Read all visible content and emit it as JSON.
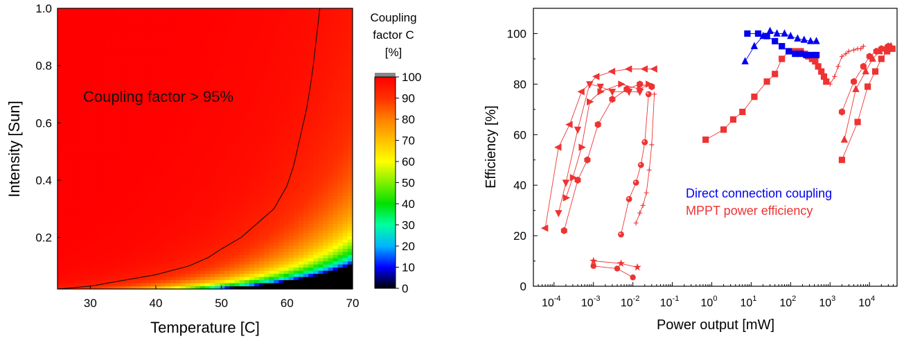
{
  "chart_data": [
    {
      "type": "heatmap",
      "xlabel": "Temperature [C]",
      "ylabel": "Intensity [Sun]",
      "xlim": [
        25,
        70
      ],
      "ylim": [
        0.02,
        1.0
      ],
      "xticks": [
        30,
        40,
        50,
        60,
        70
      ],
      "yticks": [
        0.2,
        0.4,
        0.6,
        0.8,
        1.0
      ],
      "annotation": "Coupling factor > 95%",
      "colorbar": {
        "title": [
          "Coupling",
          "factor C",
          "[%]"
        ],
        "ticks": [
          0,
          10,
          20,
          30,
          40,
          50,
          60,
          70,
          80,
          90,
          100
        ],
        "range": [
          0,
          100
        ],
        "colors": [
          "#000000",
          "#0000ff",
          "#00b4ff",
          "#00ffa0",
          "#00e000",
          "#80f000",
          "#ffff00",
          "#ffc000",
          "#ff8000",
          "#ff3000",
          "#ff0000"
        ]
      },
      "contour_95": {
        "temperature": [
          25,
          30,
          35,
          40,
          45,
          48,
          50,
          53,
          55,
          58,
          60,
          61,
          62,
          63,
          63.5,
          64,
          64.5,
          65
        ],
        "intensity": [
          0.02,
          0.03,
          0.05,
          0.07,
          0.1,
          0.13,
          0.16,
          0.2,
          0.24,
          0.3,
          0.38,
          0.45,
          0.55,
          0.65,
          0.72,
          0.8,
          0.9,
          1.0
        ]
      }
    },
    {
      "type": "scatter",
      "xlabel": "Power output [mW]",
      "ylabel": "Efficiency [%]",
      "xscale": "log",
      "xlim": [
        3e-05,
        50000
      ],
      "ylim": [
        0,
        110
      ],
      "xticks": [
        "10-4",
        "10-3",
        "10-2",
        "10-1",
        "100",
        "101",
        "102",
        "103",
        "104"
      ],
      "yticks": [
        0,
        20,
        40,
        60,
        80,
        100
      ],
      "legend": [
        {
          "label": "Direct connection coupling",
          "color": "#0000ee"
        },
        {
          "label": "MPPT power efficiency",
          "color": "#ee3333"
        }
      ],
      "series": [
        {
          "group": "MPPT power efficiency",
          "marker": "triangle-left",
          "color": "#ee3333",
          "x": [
            6e-05,
            0.00013,
            0.00025,
            0.0005,
            0.0012,
            0.003,
            0.008,
            0.02,
            0.035
          ],
          "y": [
            23,
            55,
            64,
            77,
            83,
            85,
            86,
            86,
            86
          ]
        },
        {
          "group": "MPPT power efficiency",
          "marker": "triangle-down",
          "color": "#ee3333",
          "x": [
            0.00013,
            0.0002,
            0.0004,
            0.0008,
            0.0015,
            0.003,
            0.008,
            0.015
          ],
          "y": [
            29,
            41,
            62,
            80,
            79,
            77,
            77,
            77
          ]
        },
        {
          "group": "MPPT power efficiency",
          "marker": "triangle-right",
          "color": "#ee3333",
          "x": [
            0.0002,
            0.0003,
            0.0005,
            0.0008,
            0.0015,
            0.005,
            0.015,
            0.025
          ],
          "y": [
            35,
            43,
            55,
            73,
            77,
            80,
            78,
            80
          ]
        },
        {
          "group": "MPPT power efficiency",
          "marker": "hexagon",
          "color": "#ee3333",
          "x": [
            0.00018,
            0.0004,
            0.0007,
            0.0013,
            0.003,
            0.007,
            0.015,
            0.03
          ],
          "y": [
            22,
            42,
            50,
            64,
            74,
            78,
            80,
            79
          ]
        },
        {
          "group": "MPPT power efficiency",
          "marker": "sphere",
          "color": "#ee3333",
          "x": [
            0.005,
            0.008,
            0.012,
            0.016,
            0.02,
            0.025
          ],
          "y": [
            20.5,
            34.5,
            41,
            48,
            57,
            76
          ]
        },
        {
          "group": "MPPT power efficiency",
          "marker": "plus",
          "color": "#ee3333",
          "x": [
            0.012,
            0.015,
            0.018,
            0.022,
            0.026,
            0.03,
            0.035
          ],
          "y": [
            25,
            29,
            32,
            37,
            46,
            56,
            76
          ]
        },
        {
          "group": "MPPT power efficiency",
          "marker": "star",
          "color": "#ee3333",
          "x": [
            0.001,
            0.005,
            0.013
          ],
          "y": [
            10,
            9,
            7.5
          ]
        },
        {
          "group": "MPPT power efficiency",
          "marker": "circle",
          "color": "#ee3333",
          "x": [
            0.001,
            0.004,
            0.01
          ],
          "y": [
            8,
            7,
            3.5
          ]
        },
        {
          "group": "MPPT power efficiency",
          "marker": "square",
          "color": "#ee3333",
          "x": [
            0.7,
            2,
            3.5,
            6,
            12,
            25,
            40,
            60,
            90,
            130,
            180,
            230,
            280,
            350,
            420,
            500,
            600,
            700,
            800
          ],
          "y": [
            58,
            62,
            66,
            69,
            75,
            81,
            84,
            90,
            93,
            93,
            93,
            92,
            91,
            90,
            89,
            87,
            85,
            83,
            81
          ]
        },
        {
          "group": "MPPT power efficiency",
          "marker": "plus",
          "color": "#ee3333",
          "x": [
            1000,
            1300,
            1600,
            2000,
            2500,
            3000,
            4000,
            5000,
            6000,
            7000
          ],
          "y": [
            80,
            83,
            87,
            91,
            92,
            93,
            93.5,
            94,
            94,
            95
          ]
        },
        {
          "group": "MPPT power efficiency",
          "marker": "hexagon",
          "color": "#ee3333",
          "x": [
            2000,
            4000,
            7000,
            10000,
            15000,
            20000,
            30000
          ],
          "y": [
            69,
            81,
            87,
            91,
            93,
            94,
            95
          ]
        },
        {
          "group": "MPPT power efficiency",
          "marker": "triangle-up",
          "color": "#ee3333",
          "x": [
            2300,
            4500,
            8000,
            12000,
            18000,
            25000,
            35000
          ],
          "y": [
            58,
            78,
            85,
            90,
            93,
            94,
            95
          ]
        },
        {
          "group": "MPPT power efficiency",
          "marker": "square",
          "color": "#ee3333",
          "x": [
            2000,
            5000,
            9000,
            14000,
            20000,
            28000,
            38000
          ],
          "y": [
            50,
            65,
            79,
            85,
            90,
            93,
            94
          ]
        },
        {
          "group": "Direct connection coupling",
          "marker": "square",
          "color": "#0000ee",
          "x": [
            8,
            15,
            25,
            40,
            60,
            90,
            130,
            180,
            250,
            350,
            450
          ],
          "y": [
            100,
            100,
            99,
            97,
            95,
            93,
            92,
            92,
            91.5,
            91.5,
            91.5
          ]
        },
        {
          "group": "Direct connection coupling",
          "marker": "triangle-up",
          "color": "#0000ee",
          "x": [
            7,
            12,
            20,
            30,
            45,
            70,
            100,
            150,
            220,
            320,
            450
          ],
          "y": [
            89,
            95,
            99,
            101,
            100,
            100,
            99,
            98,
            97.5,
            97,
            97
          ]
        }
      ]
    }
  ]
}
